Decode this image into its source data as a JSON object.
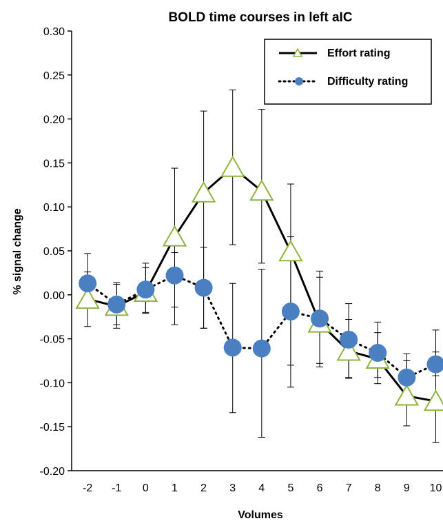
{
  "chart_data": {
    "type": "line",
    "title": "BOLD time courses in left aIC",
    "xlabel": "Volumes",
    "ylabel": "% signal change",
    "ylim": [
      -0.2,
      0.3
    ],
    "yticks": [
      "0.30",
      "0.25",
      "0.20",
      "0.15",
      "0.10",
      "0.05",
      "0.00",
      "-0.05",
      "-0.10",
      "-0.15",
      "-0.20"
    ],
    "x": [
      -2,
      -1,
      0,
      1,
      2,
      3,
      4,
      5,
      6,
      7,
      8,
      9,
      10
    ],
    "grid": false,
    "legend": "top-right",
    "series": [
      {
        "name": "Effort rating",
        "style": "solid",
        "line_color": "#000000",
        "marker": "triangle",
        "marker_fill": "#ffffff",
        "marker_edge": "#8db43f",
        "values": [
          -0.005,
          -0.013,
          0.003,
          0.066,
          0.116,
          0.145,
          0.118,
          0.049,
          -0.032,
          -0.064,
          -0.073,
          -0.115,
          -0.121
        ],
        "err_upper": [
          0.047,
          0.014,
          0.036,
          0.144,
          0.209,
          0.233,
          0.211,
          0.126,
          0.027,
          -0.01,
          -0.031,
          -0.067,
          -0.04
        ],
        "err_lower": [
          -0.036,
          -0.038,
          -0.021,
          -0.014,
          -0.038,
          0.057,
          0.036,
          -0.105,
          -0.082,
          -0.095,
          -0.101,
          -0.149,
          -0.168
        ]
      },
      {
        "name": "Difficulty rating",
        "style": "dotted",
        "line_color": "#000000",
        "marker": "circle",
        "marker_fill": "#4a7fc1",
        "values": [
          0.013,
          -0.011,
          0.006,
          0.022,
          0.008,
          -0.06,
          -0.061,
          -0.019,
          -0.027,
          -0.051,
          -0.066,
          -0.094,
          -0.079
        ],
        "err_upper": [
          0.026,
          0.012,
          0.031,
          0.048,
          0.054,
          0.013,
          0.029,
          0.066,
          0.02,
          -0.028,
          -0.043,
          -0.075,
          -0.065
        ],
        "err_lower": [
          -0.013,
          -0.034,
          -0.02,
          -0.034,
          -0.038,
          -0.134,
          -0.162,
          -0.08,
          -0.078,
          -0.094,
          -0.094,
          -0.11,
          -0.092
        ]
      }
    ]
  }
}
